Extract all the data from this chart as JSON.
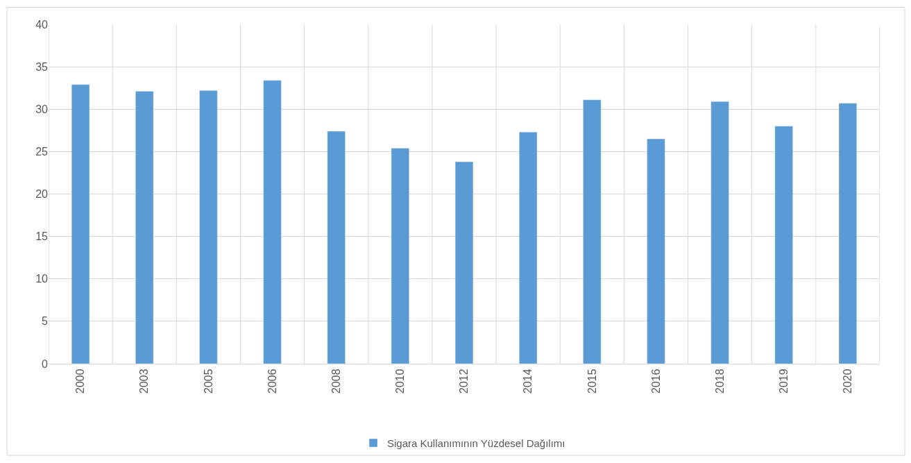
{
  "chart_data": {
    "type": "bar",
    "categories": [
      "2000",
      "2003",
      "2005",
      "2006",
      "2008",
      "2010",
      "2012",
      "2014",
      "2015",
      "2016",
      "2018",
      "2019",
      "2020"
    ],
    "series": [
      {
        "name": "Sigara Kullanımının Yüzdesel Dağılımı",
        "color": "#5b9bd5",
        "values": [
          32.9,
          32.1,
          32.2,
          33.4,
          27.4,
          25.4,
          23.8,
          27.3,
          31.1,
          26.5,
          30.9,
          28.0,
          30.7
        ]
      }
    ],
    "ylim": [
      0,
      40
    ],
    "yticks": [
      0,
      5,
      10,
      15,
      20,
      25,
      30,
      35,
      40
    ],
    "grid": true,
    "legend": "bottom"
  }
}
